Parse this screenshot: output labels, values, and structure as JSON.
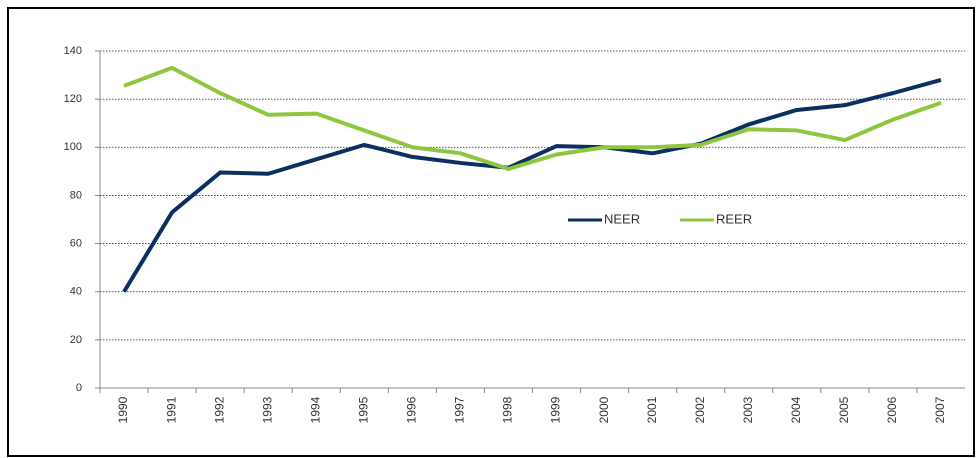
{
  "chart_data": {
    "type": "line",
    "categories": [
      "1990",
      "1991",
      "1992",
      "1993",
      "1994",
      "1995",
      "1996",
      "1997",
      "1998",
      "1999",
      "2000",
      "2001",
      "2002",
      "2003",
      "2004",
      "2005",
      "2006",
      "2007"
    ],
    "series": [
      {
        "name": "NEER",
        "color": "#0b2f5e",
        "values": [
          40,
          73,
          89.5,
          89,
          95,
          101,
          96,
          93.5,
          91.5,
          100.5,
          100,
          97.5,
          101.5,
          109.5,
          115.5,
          117.5,
          122.5,
          128
        ]
      },
      {
        "name": "REER",
        "color": "#8dc63f",
        "values": [
          125.5,
          133,
          122.5,
          113.5,
          114,
          107,
          100,
          97.5,
          91,
          97,
          100,
          100,
          101,
          107.5,
          107,
          103,
          111.5,
          118.5
        ]
      }
    ],
    "ylim": [
      0,
      140
    ],
    "yticks": [
      0,
      20,
      40,
      60,
      80,
      100,
      120,
      140
    ],
    "grid": true,
    "legend_position": "center"
  }
}
